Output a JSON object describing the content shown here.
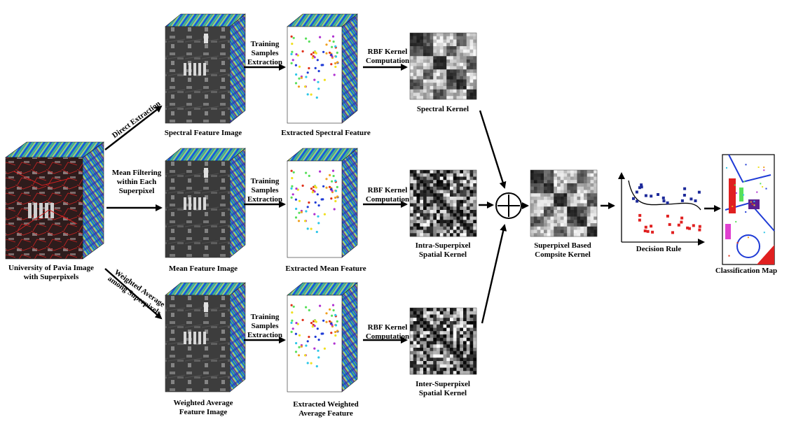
{
  "source": {
    "label_line1": "University of Pavia Image",
    "label_line2": "with Superpixels"
  },
  "branches": {
    "direct": "Direct Extraction",
    "mean_line1": "Mean Filtering",
    "mean_line2": "within Each",
    "mean_line3": "Superpixel",
    "weighted_line1": "Weighted Average",
    "weighted_line2": "among Superpixels"
  },
  "feature_images": {
    "spectral": "Spectral Feature Image",
    "mean": "Mean Feature Image",
    "weighted_line1": "Weighted Average",
    "weighted_line2": "Feature Image"
  },
  "training": {
    "line1": "Training",
    "line2": "Samples",
    "line3": "Extraction"
  },
  "extracted": {
    "spectral": "Extracted Spectral Feature",
    "mean": "Extracted Mean Feature",
    "weighted_line1": "Extracted Weighted",
    "weighted_line2": "Average Feature"
  },
  "rbf": {
    "line1": "RBF Kernel",
    "line2": "Computation"
  },
  "kernels": {
    "spectral": "Spectral  Kernel",
    "intra_line1": "Intra-Superpixel",
    "intra_line2": "Spatial Kernel",
    "inter_line1": "Inter-Superpixel",
    "inter_line2": "Spatial Kernel"
  },
  "composite": {
    "line1": "Superpixel Based",
    "line2": "Compsite  Kernel"
  },
  "decision": {
    "label": "Decision Rule"
  },
  "output": {
    "label": "Classification Map"
  },
  "colors": {
    "arrow": "#000000",
    "spectral_band_a": "#1f3bd6",
    "spectral_band_b": "#2ec7e8",
    "spectral_band_c": "#58e05a",
    "spectral_band_d": "#f0e020",
    "spectral_band_e": "#e0301a",
    "class_blue": "#1d2a9a",
    "class_red": "#e02020",
    "superpixel_edge": "#c02020"
  }
}
